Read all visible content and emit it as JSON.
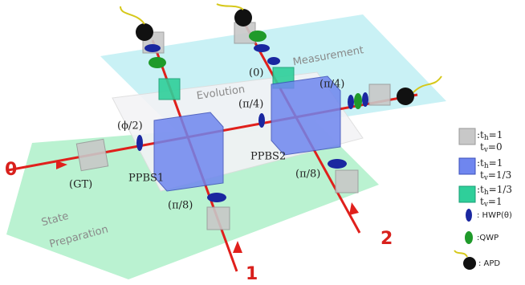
{
  "panels": {
    "measurement": "Measurement",
    "evolution": "Evolution",
    "state_preparation": [
      "State",
      "Preparation"
    ]
  },
  "components": {
    "ppbs1": "PPBS1",
    "ppbs2": "PPBS2",
    "gt": "(GT)"
  },
  "waveplates": [
    "(0)",
    "(π/4)",
    "(π/4)",
    "(ϕ/2)",
    "(π/8)",
    "(π/8)"
  ],
  "inputs": [
    "0",
    "1",
    "2"
  ],
  "legend": [
    {
      "sep": ":",
      "rows": [
        {
          "t": "t",
          "s": "h",
          "v": "=1"
        },
        {
          "t": "t",
          "s": "v",
          "v": "=0"
        }
      ]
    },
    {
      "sep": ":",
      "rows": [
        {
          "t": "t",
          "s": "h",
          "v": "=1"
        },
        {
          "t": "t",
          "s": "v",
          "v": "=1/3"
        }
      ]
    },
    {
      "sep": ":",
      "rows": [
        {
          "t": "t",
          "s": "h",
          "v": "=1/3"
        },
        {
          "t": "t",
          "s": "v",
          "v": "=1"
        }
      ]
    },
    {
      "label": ": HWP(θ)"
    },
    {
      "label": ":QWP"
    },
    {
      "label": ": APD"
    }
  ]
}
